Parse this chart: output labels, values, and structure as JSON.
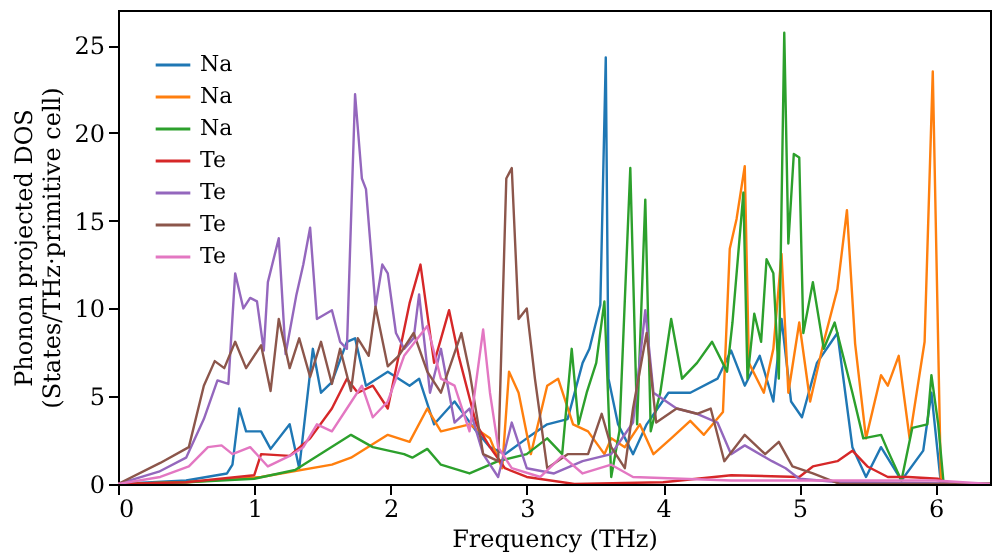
{
  "chart_data": {
    "type": "line",
    "xlabel": "Frequency (THz)",
    "ylabel": "Phonon projected DOS\n(States/THz·primitive cell)",
    "xlim": [
      0,
      6.4
    ],
    "ylim": [
      0,
      27
    ],
    "xticks": [
      0,
      1,
      2,
      3,
      4,
      5,
      6
    ],
    "yticks": [
      0,
      5,
      10,
      15,
      20,
      25
    ],
    "legend": "top left",
    "grid": false,
    "line_style": "solid",
    "marker": "none",
    "series": [
      {
        "name": "Na",
        "color": "#1f77b4",
        "x": [
          0,
          0.5,
          0.8,
          0.84,
          0.89,
          0.94,
          1.05,
          1.12,
          1.26,
          1.33,
          1.43,
          1.49,
          1.57,
          1.68,
          1.74,
          1.82,
          1.98,
          2.14,
          2.21,
          2.32,
          2.47,
          2.63,
          2.73,
          2.84,
          3.0,
          3.15,
          3.3,
          3.41,
          3.46,
          3.54,
          3.58,
          3.6,
          3.67,
          3.78,
          3.88,
          4.04,
          4.2,
          4.4,
          4.5,
          4.6,
          4.71,
          4.81,
          4.87,
          4.94,
          5.02,
          5.13,
          5.28,
          5.39,
          5.49,
          5.6,
          5.75,
          5.91,
          5.97,
          6.04,
          6.4
        ],
        "values": [
          0,
          0.2,
          0.6,
          1.1,
          4.3,
          3.0,
          3.0,
          2.0,
          3.4,
          0.9,
          7.7,
          5.2,
          5.8,
          8.1,
          8.3,
          5.6,
          6.4,
          5.6,
          6.0,
          3.4,
          4.7,
          3.0,
          2.1,
          1.7,
          2.6,
          3.4,
          3.7,
          6.9,
          7.7,
          10.2,
          24.3,
          6.0,
          3.4,
          1.7,
          3.4,
          5.2,
          5.2,
          6.0,
          7.6,
          5.6,
          7.3,
          4.7,
          9.4,
          4.7,
          3.8,
          6.9,
          8.6,
          2.1,
          0.4,
          2.1,
          0.2,
          1.9,
          5.2,
          0,
          0
        ]
      },
      {
        "name": "Na",
        "color": "#ff7f0e",
        "x": [
          0,
          0.5,
          1.05,
          1.57,
          1.71,
          1.98,
          2.14,
          2.27,
          2.37,
          2.58,
          2.73,
          2.82,
          2.87,
          2.94,
          3.03,
          3.15,
          3.23,
          3.34,
          3.45,
          3.57,
          3.62,
          3.72,
          3.83,
          3.93,
          4.06,
          4.2,
          4.3,
          4.44,
          4.49,
          4.54,
          4.6,
          4.63,
          4.74,
          4.81,
          4.87,
          4.92,
          5.0,
          5.08,
          5.18,
          5.28,
          5.35,
          5.41,
          5.49,
          5.6,
          5.65,
          5.73,
          5.81,
          5.92,
          5.98,
          6.04,
          6.4
        ],
        "values": [
          0,
          0.1,
          0.4,
          1.1,
          1.5,
          2.8,
          2.4,
          4.3,
          3.0,
          3.4,
          2.6,
          0.9,
          6.4,
          5.2,
          1.7,
          5.6,
          6.0,
          3.4,
          3.0,
          1.7,
          2.6,
          2.1,
          3.4,
          1.7,
          2.6,
          3.6,
          2.8,
          4.1,
          13.4,
          15.1,
          18.1,
          6.9,
          5.2,
          7.7,
          13.1,
          5.2,
          9.2,
          4.7,
          8.1,
          11.1,
          15.6,
          8.0,
          2.6,
          6.2,
          5.6,
          7.3,
          2.6,
          8.1,
          23.5,
          0,
          0
        ]
      },
      {
        "name": "Na",
        "color": "#2ca02c",
        "x": [
          0,
          0.5,
          1.0,
          1.3,
          1.71,
          1.87,
          2.1,
          2.16,
          2.27,
          2.37,
          2.58,
          2.79,
          3.0,
          3.15,
          3.26,
          3.33,
          3.38,
          3.44,
          3.51,
          3.57,
          3.62,
          3.68,
          3.76,
          3.81,
          3.87,
          3.91,
          3.98,
          4.06,
          4.14,
          4.25,
          4.36,
          4.47,
          4.51,
          4.59,
          4.62,
          4.67,
          4.72,
          4.76,
          4.81,
          4.85,
          4.89,
          4.92,
          4.96,
          5.0,
          5.03,
          5.1,
          5.18,
          5.26,
          5.39,
          5.47,
          5.6,
          5.65,
          5.75,
          5.83,
          5.94,
          5.97,
          6.02,
          6.06,
          6.4
        ],
        "values": [
          0,
          0.1,
          0.3,
          0.8,
          2.8,
          2.1,
          1.7,
          1.5,
          2.0,
          1.1,
          0.6,
          1.3,
          1.7,
          2.6,
          1.7,
          7.7,
          3.4,
          5.2,
          6.9,
          10.4,
          0.4,
          3.0,
          18.0,
          3.4,
          16.2,
          3.0,
          5.2,
          9.4,
          6.0,
          6.9,
          8.1,
          6.4,
          9.2,
          16.6,
          6.0,
          9.7,
          8.1,
          12.8,
          12.0,
          6.0,
          25.7,
          13.7,
          18.8,
          18.6,
          8.6,
          11.5,
          7.7,
          9.2,
          5.2,
          2.6,
          2.8,
          1.9,
          0.2,
          3.2,
          3.4,
          6.2,
          3.4,
          0,
          0
        ]
      },
      {
        "name": "Te",
        "color": "#d62728",
        "x": [
          0,
          0.5,
          1.0,
          1.05,
          1.26,
          1.41,
          1.57,
          1.68,
          1.76,
          1.87,
          1.98,
          2.14,
          2.22,
          2.32,
          2.43,
          2.5,
          2.63,
          2.73,
          2.84,
          3.0,
          3.35,
          4.0,
          4.5,
          5.0,
          5.1,
          5.28,
          5.39,
          5.5,
          5.65,
          5.8,
          6.02,
          6.1,
          6.4
        ],
        "values": [
          0,
          0.1,
          0.5,
          1.7,
          1.6,
          2.6,
          4.3,
          6.0,
          5.2,
          5.6,
          4.3,
          10.3,
          12.5,
          6.9,
          9.9,
          7.3,
          3.4,
          2.1,
          0.9,
          0.4,
          0,
          0.1,
          0.5,
          0.4,
          1.0,
          1.3,
          1.9,
          1.0,
          0.4,
          0.4,
          0.3,
          0,
          0
        ]
      },
      {
        "name": "Te",
        "color": "#9467bd",
        "x": [
          0,
          0.3,
          0.5,
          0.63,
          0.73,
          0.81,
          0.86,
          0.92,
          0.97,
          1.02,
          1.07,
          1.1,
          1.18,
          1.23,
          1.31,
          1.36,
          1.41,
          1.46,
          1.57,
          1.63,
          1.68,
          1.74,
          1.79,
          1.82,
          1.89,
          1.94,
          1.98,
          2.04,
          2.1,
          2.17,
          2.21,
          2.29,
          2.37,
          2.47,
          2.58,
          2.68,
          2.79,
          2.89,
          3.0,
          3.2,
          3.41,
          3.62,
          3.78,
          3.87,
          3.93,
          4.1,
          4.25,
          4.4,
          4.5,
          4.6,
          4.8,
          4.9,
          5.0,
          5.3,
          6.4
        ],
        "values": [
          0,
          0.7,
          1.5,
          3.7,
          5.9,
          5.7,
          12.0,
          10.0,
          10.6,
          10.4,
          7.6,
          11.5,
          14.0,
          7.4,
          10.8,
          12.5,
          14.6,
          9.4,
          9.9,
          8.1,
          7.7,
          22.2,
          17.4,
          16.8,
          10.1,
          12.5,
          12.0,
          8.6,
          7.7,
          8.3,
          10.8,
          5.2,
          7.7,
          3.5,
          4.3,
          1.7,
          0.4,
          3.5,
          0.9,
          0.6,
          1.3,
          1.7,
          3.5,
          9.9,
          5.2,
          4.3,
          4.0,
          3.5,
          1.7,
          2.2,
          1.3,
          0.9,
          0.3,
          0.1,
          0
        ]
      },
      {
        "name": "Te",
        "color": "#8c564b",
        "x": [
          0,
          0.31,
          0.52,
          0.63,
          0.71,
          0.78,
          0.86,
          0.94,
          1.05,
          1.12,
          1.18,
          1.26,
          1.33,
          1.41,
          1.49,
          1.57,
          1.63,
          1.71,
          1.76,
          1.84,
          1.89,
          1.98,
          2.06,
          2.17,
          2.27,
          2.37,
          2.52,
          2.58,
          2.68,
          2.79,
          2.85,
          2.89,
          2.94,
          3.0,
          3.06,
          3.15,
          3.3,
          3.45,
          3.55,
          3.62,
          3.72,
          3.78,
          3.88,
          3.95,
          4.1,
          4.25,
          4.35,
          4.45,
          4.6,
          4.75,
          4.85,
          4.95,
          5.1,
          5.3,
          6.4
        ],
        "values": [
          0,
          1.2,
          2.1,
          5.6,
          7.0,
          6.6,
          8.1,
          6.6,
          7.9,
          5.3,
          9.4,
          6.6,
          8.3,
          6.1,
          8.1,
          5.7,
          7.7,
          5.3,
          8.3,
          7.3,
          10.1,
          6.7,
          7.3,
          8.6,
          6.4,
          5.2,
          8.6,
          6.4,
          1.7,
          1.3,
          17.4,
          18.0,
          9.4,
          10.0,
          6.0,
          0.9,
          1.7,
          1.7,
          4.0,
          2.1,
          0.9,
          4.3,
          8.6,
          3.5,
          4.3,
          4.0,
          4.3,
          1.3,
          2.8,
          1.7,
          2.4,
          1.0,
          0.6,
          0,
          0
        ]
      },
      {
        "name": "Te",
        "color": "#e377c2",
        "x": [
          0,
          0.31,
          0.52,
          0.66,
          0.76,
          0.84,
          0.97,
          1.1,
          1.26,
          1.36,
          1.46,
          1.57,
          1.68,
          1.79,
          1.87,
          1.98,
          2.1,
          2.17,
          2.27,
          2.37,
          2.47,
          2.58,
          2.68,
          2.73,
          2.79,
          2.89,
          3.1,
          3.26,
          3.41,
          3.62,
          3.78,
          4.5,
          6.0,
          6.4
        ],
        "values": [
          0,
          0.4,
          1.0,
          2.1,
          2.2,
          1.7,
          2.1,
          1.0,
          1.6,
          2.1,
          3.4,
          3.0,
          4.3,
          5.6,
          3.8,
          4.7,
          7.3,
          8.0,
          9.0,
          6.0,
          5.6,
          3.0,
          8.8,
          5.2,
          2.1,
          0.9,
          0.4,
          1.6,
          0.6,
          1.1,
          0.4,
          0.2,
          0.2,
          0
        ]
      }
    ]
  }
}
